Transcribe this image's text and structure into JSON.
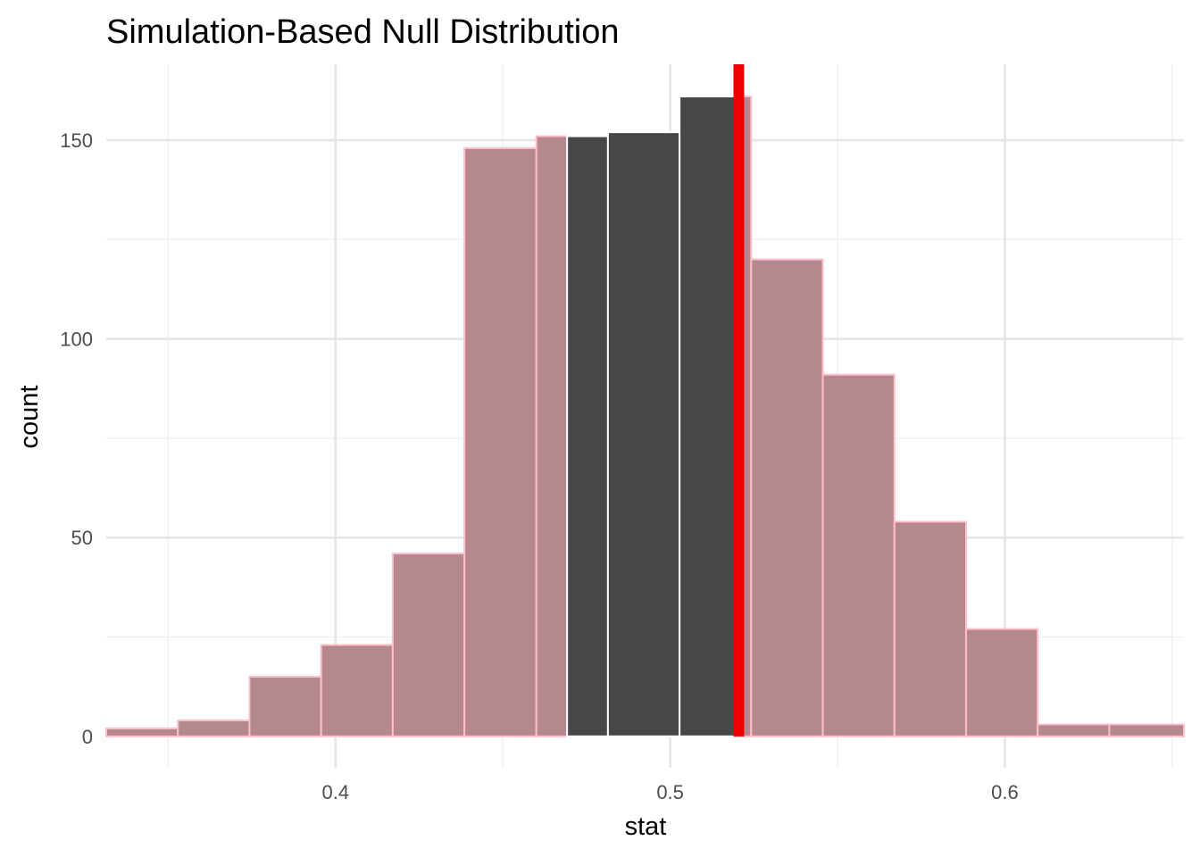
{
  "chart_data": {
    "type": "bar",
    "title": "Simulation-Based Null Distribution",
    "xlabel": "stat",
    "ylabel": "count",
    "xlim": [
      0.3315,
      0.6535
    ],
    "ylim": [
      -7.9,
      169.1
    ],
    "x_ticks": [
      {
        "value": 0.4,
        "label": "0.4"
      },
      {
        "value": 0.5,
        "label": "0.5"
      },
      {
        "value": 0.6,
        "label": "0.6"
      }
    ],
    "y_ticks": [
      {
        "value": 0,
        "label": "0"
      },
      {
        "value": 50,
        "label": "50"
      },
      {
        "value": 100,
        "label": "100"
      },
      {
        "value": 150,
        "label": "150"
      }
    ],
    "bins": [
      {
        "x0": 0.3315,
        "x1": 0.3529,
        "count": 2,
        "shaded": false
      },
      {
        "x0": 0.3529,
        "x1": 0.3743,
        "count": 4,
        "shaded": false
      },
      {
        "x0": 0.3743,
        "x1": 0.3957,
        "count": 15,
        "shaded": false
      },
      {
        "x0": 0.3957,
        "x1": 0.4171,
        "count": 23,
        "shaded": false
      },
      {
        "x0": 0.4171,
        "x1": 0.4385,
        "count": 46,
        "shaded": false
      },
      {
        "x0": 0.4385,
        "x1": 0.46,
        "count": 148,
        "shaded": false
      },
      {
        "x0": 0.46,
        "x1": 0.4692,
        "count": 151,
        "shaded": false
      },
      {
        "x0": 0.4692,
        "x1": 0.4814,
        "count": 151,
        "shaded": true
      },
      {
        "x0": 0.4814,
        "x1": 0.5028,
        "count": 152,
        "shaded": true
      },
      {
        "x0": 0.5028,
        "x1": 0.5192,
        "count": 161,
        "shaded": true
      },
      {
        "x0": 0.5192,
        "x1": 0.5242,
        "count": 161,
        "shaded": false
      },
      {
        "x0": 0.5242,
        "x1": 0.5456,
        "count": 120,
        "shaded": false
      },
      {
        "x0": 0.5456,
        "x1": 0.567,
        "count": 91,
        "shaded": false
      },
      {
        "x0": 0.567,
        "x1": 0.5884,
        "count": 54,
        "shaded": false
      },
      {
        "x0": 0.5884,
        "x1": 0.6098,
        "count": 27,
        "shaded": false
      },
      {
        "x0": 0.6098,
        "x1": 0.6312,
        "count": 3,
        "shaded": false
      },
      {
        "x0": 0.6312,
        "x1": 0.6535,
        "count": 3,
        "shaded": false
      }
    ],
    "observed_stat": 0.5205,
    "colors": {
      "bar_fill": "#b5878e",
      "bar_outline": "#ffc0cb",
      "shaded_fill": "#474747",
      "shaded_outline": "#ffffff",
      "observed_line": "#ee0000",
      "grid_major": "#e5e5e5",
      "grid_minor": "#f0f0f0"
    },
    "grid": true
  }
}
